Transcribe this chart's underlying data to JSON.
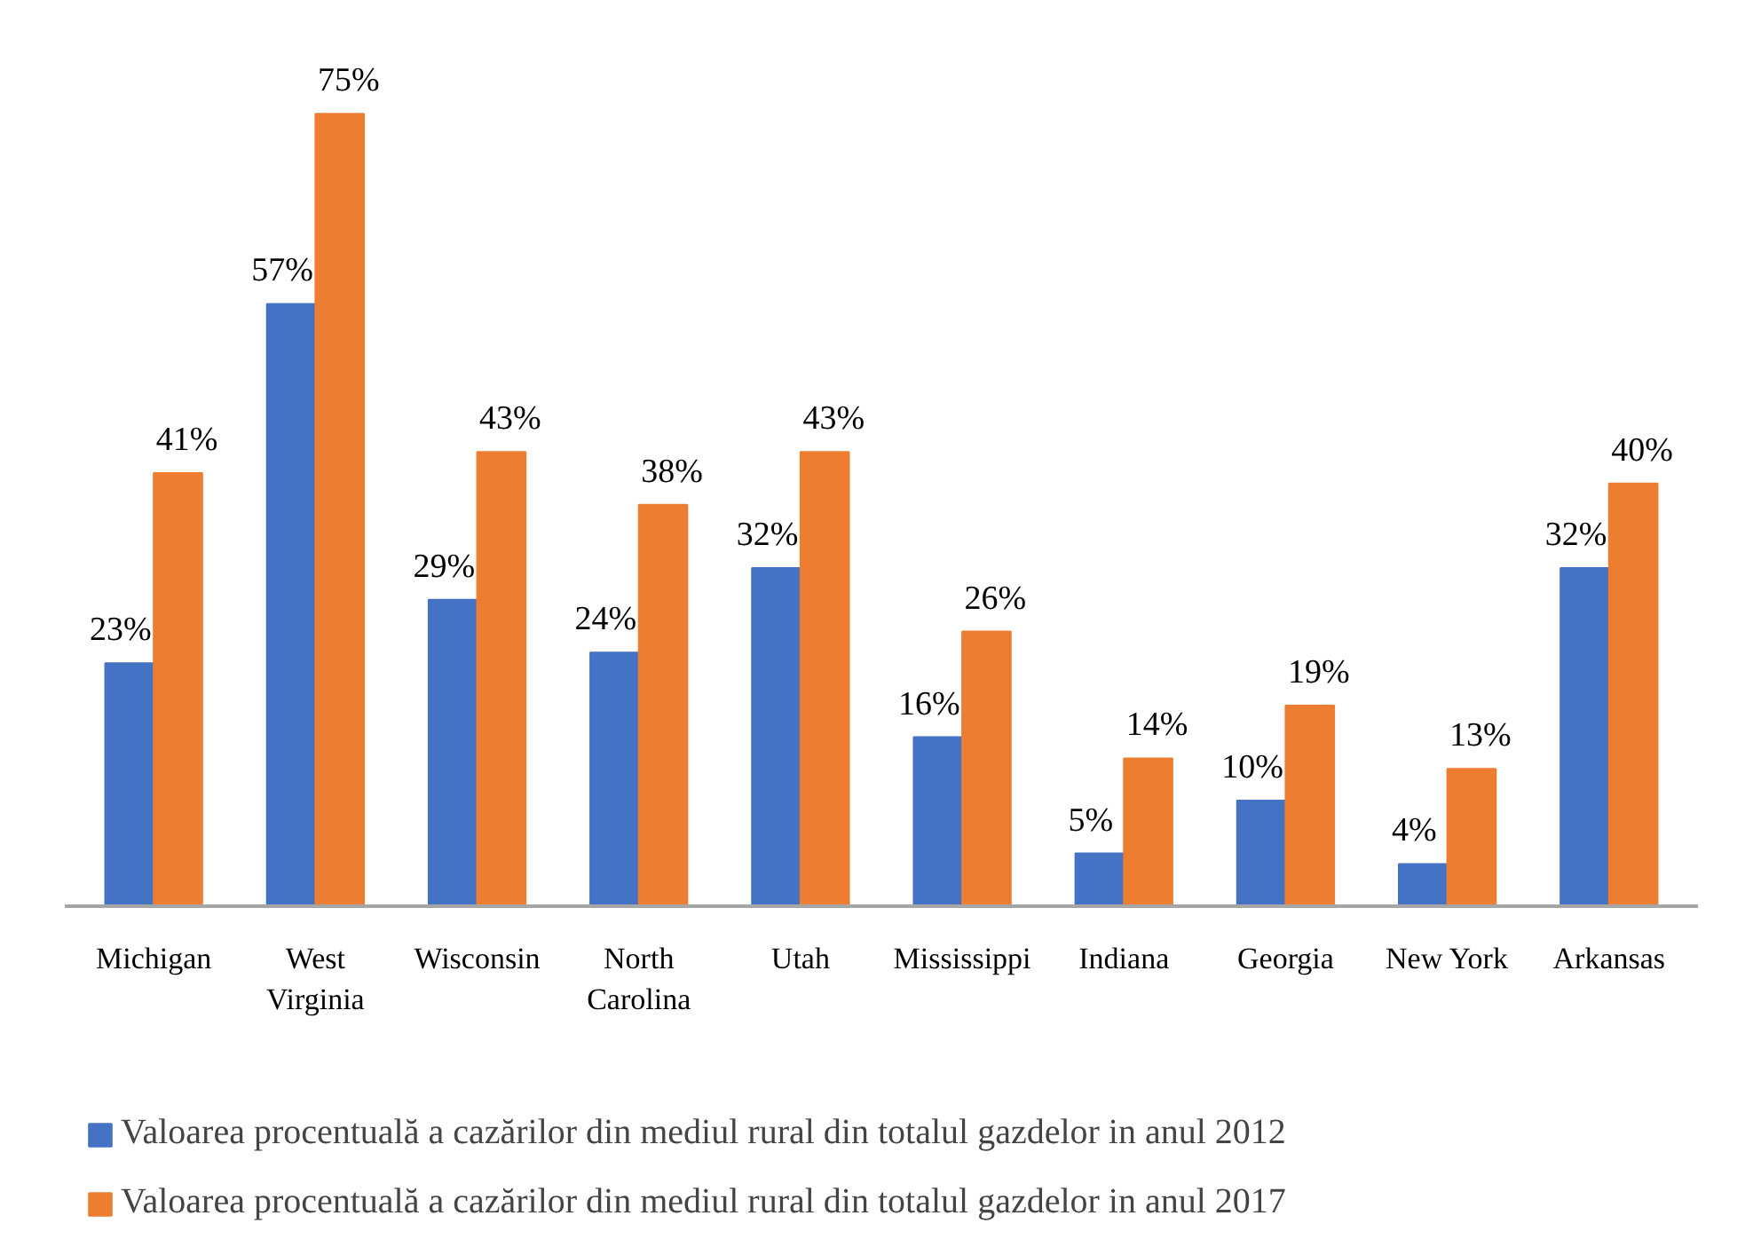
{
  "chart_data": {
    "type": "bar",
    "categories": [
      "Michigan",
      "West Virginia",
      "Wisconsin",
      "North Carolina",
      "Utah",
      "Mississippi",
      "Indiana",
      "Georgia",
      "New York",
      "Arkansas"
    ],
    "series": [
      {
        "name": "Valoarea procentuală a cazărilor din mediul rural din totalul gazdelor in anul 2012",
        "color": "#4472c4",
        "values": [
          23,
          57,
          29,
          24,
          32,
          16,
          5,
          10,
          4,
          32
        ],
        "value_labels": [
          "23%",
          "57%",
          "29%",
          "24%",
          "32%",
          "16%",
          "5%",
          "10%",
          "4%",
          "32%"
        ]
      },
      {
        "name": "Valoarea procentuală a cazărilor din mediul rural din totalul gazdelor in anul 2017",
        "color": "#ed7d31",
        "values": [
          41,
          75,
          43,
          38,
          43,
          26,
          14,
          19,
          13,
          40
        ],
        "value_labels": [
          "41%",
          "75%",
          "43%",
          "38%",
          "43%",
          "26%",
          "14%",
          "19%",
          "13%",
          "40%"
        ]
      }
    ],
    "legend": "bottom",
    "grid": false,
    "tick_labels": "x"
  }
}
